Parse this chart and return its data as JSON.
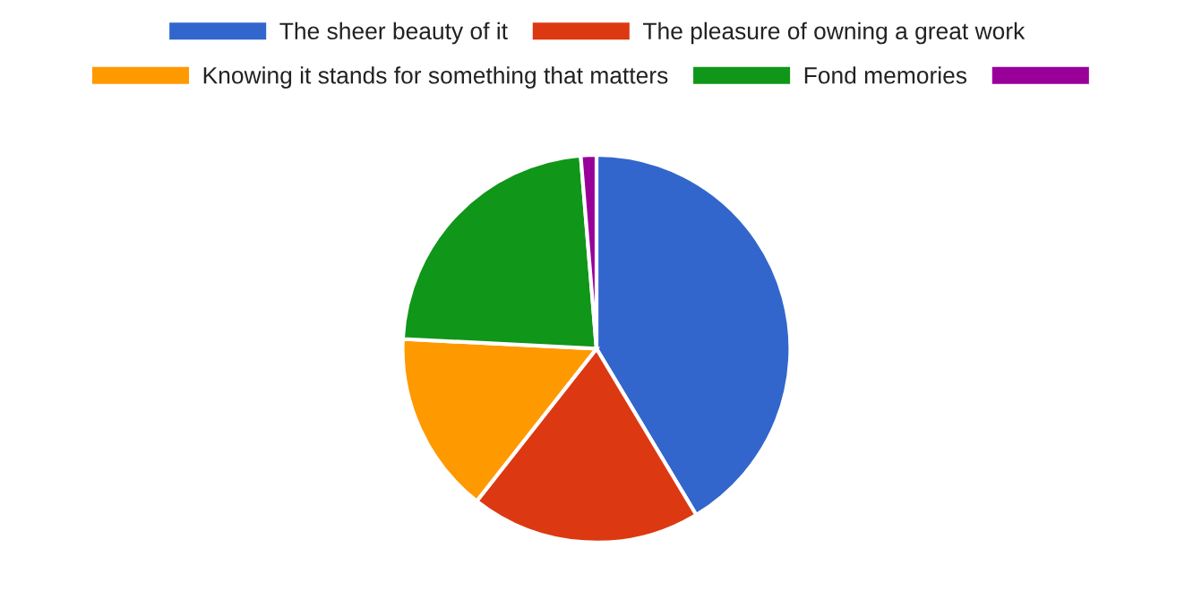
{
  "chart_data": {
    "type": "pie",
    "categories": [
      "The sheer beauty of it",
      "The pleasure of owning a great work",
      "Knowing it stands for something that matters",
      "Fond memories",
      null
    ],
    "values": [
      41.4,
      19.2,
      15.2,
      22.9,
      1.3
    ],
    "colors": [
      "#3366cc",
      "#dc3912",
      "#ff9900",
      "#109618",
      "#990099"
    ],
    "legend": "top"
  }
}
